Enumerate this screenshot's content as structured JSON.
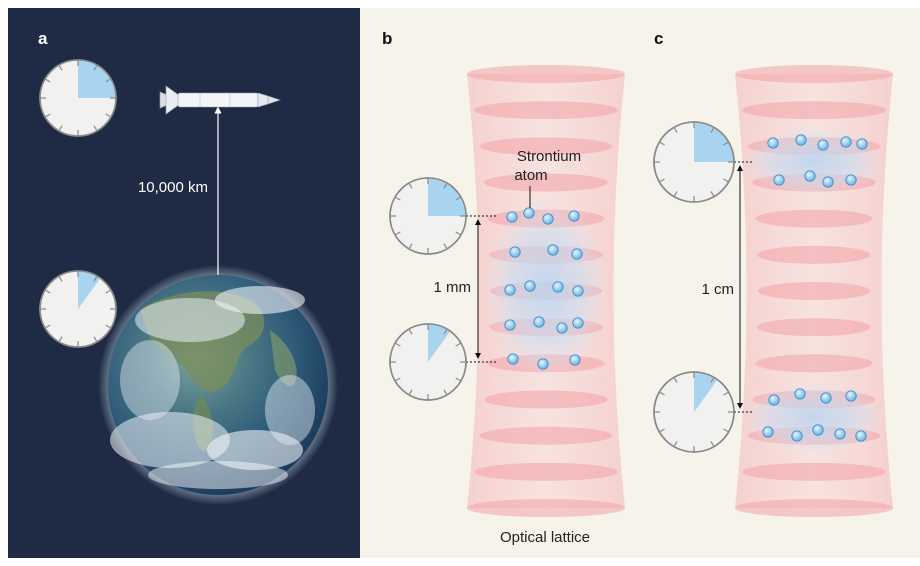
{
  "panels": {
    "a": {
      "label": "a",
      "distance_label": "10,000 km",
      "clock_top_fraction": 0.25,
      "clock_bottom_fraction": 0.1
    },
    "b": {
      "label": "b",
      "atom_label_line1": "Strontium",
      "atom_label_line2": "atom",
      "separation_label": "1 mm",
      "lattice_label": "Optical lattice",
      "clock_top_fraction": 0.25,
      "clock_bottom_fraction": 0.1
    },
    "c": {
      "label": "c",
      "separation_label": "1 cm",
      "clock_top_fraction": 0.25,
      "clock_bottom_fraction": 0.1
    }
  },
  "colors": {
    "space_background": "#1f2b44",
    "paper_background": "#f6f3ea",
    "lattice_pink": "#f2a3a8",
    "clock_fill": "#a9d4f0",
    "atom_blue": "#8cc9ef"
  }
}
